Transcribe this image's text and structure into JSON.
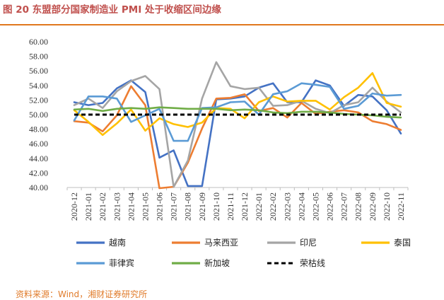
{
  "figure": {
    "title": "图 20 东盟部分国家制造业 PMI 处于收缩区间边缘",
    "source": "资料来源：Wind，湘财证券研究所"
  },
  "chart_data": {
    "type": "line",
    "title": "图 20 东盟部分国家制造业 PMI 处于收缩区间边缘",
    "xlabel": "",
    "ylabel": "",
    "ylim": [
      40,
      60
    ],
    "yticks": [
      40,
      42,
      44,
      46,
      48,
      50,
      52,
      54,
      56,
      58,
      60
    ],
    "ytick_labels": [
      "40.00",
      "42.00",
      "44.00",
      "46.00",
      "48.00",
      "50.00",
      "52.00",
      "54.00",
      "56.00",
      "58.00",
      "60.00"
    ],
    "grid": false,
    "legend_position": "bottom",
    "categories": [
      "2020-12",
      "2021-01",
      "2021-02",
      "2021-03",
      "2021-04",
      "2021-05",
      "2021-06",
      "2021-07",
      "2021-08",
      "2021-09",
      "2021-10",
      "2021-11",
      "2021-12",
      "2022-01",
      "2022-02",
      "2022-03",
      "2022-04",
      "2022-05",
      "2022-06",
      "2022-07",
      "2022-08",
      "2022-09",
      "2022-10",
      "2022-11"
    ],
    "x_tick_labels": [
      "2020-12",
      "2021-01",
      "2021-02",
      "2021-03",
      "2021-04",
      "2021-05",
      "2021-06",
      "2021-07",
      "2021-08",
      "2021-09",
      "2021-10",
      "2021-11",
      "2021-12",
      "2022-01",
      "2022-02",
      "2022-03",
      "2022-04",
      "2022-05",
      "2022-06",
      "2022-07",
      "2022-08",
      "2022-09",
      "2022-10",
      "2022-11"
    ],
    "series": [
      {
        "name": "越南",
        "color": "#4472c4",
        "dash": "solid",
        "values": [
          51.7,
          51.3,
          51.6,
          53.6,
          54.7,
          53.1,
          44.1,
          45.1,
          40.2,
          40.2,
          52.1,
          52.2,
          52.5,
          53.7,
          54.3,
          51.7,
          51.7,
          54.7,
          54.0,
          51.2,
          52.7,
          52.5,
          50.6,
          47.4
        ]
      },
      {
        "name": "马来西亚",
        "color": "#ed7d31",
        "dash": "solid",
        "values": [
          49.1,
          48.9,
          47.7,
          49.9,
          53.9,
          51.3,
          39.9,
          40.1,
          43.4,
          48.1,
          52.2,
          52.3,
          52.8,
          50.5,
          50.9,
          49.6,
          51.6,
          50.1,
          50.4,
          50.6,
          50.3,
          49.1,
          48.7,
          47.9
        ]
      },
      {
        "name": "印尼",
        "color": "#a5a5a5",
        "dash": "solid",
        "values": [
          51.3,
          52.2,
          50.9,
          53.2,
          54.6,
          55.3,
          53.5,
          40.1,
          43.7,
          52.2,
          57.2,
          53.9,
          53.5,
          53.7,
          51.2,
          51.3,
          51.9,
          50.8,
          50.2,
          51.3,
          51.7,
          53.7,
          51.8,
          50.3
        ]
      },
      {
        "name": "泰国",
        "color": "#ffc000",
        "dash": "solid",
        "values": [
          50.6,
          49.0,
          47.2,
          48.8,
          50.7,
          47.8,
          49.5,
          48.7,
          48.3,
          48.9,
          50.9,
          50.8,
          49.5,
          51.7,
          52.5,
          51.8,
          51.9,
          51.9,
          50.7,
          52.4,
          53.7,
          55.7,
          51.6,
          51.1
        ]
      },
      {
        "name": "菲律宾",
        "color": "#5b9bd5",
        "dash": "solid",
        "values": [
          49.2,
          52.5,
          52.5,
          52.2,
          49.0,
          49.9,
          50.8,
          46.4,
          46.4,
          50.9,
          51.0,
          51.7,
          51.8,
          50.0,
          52.8,
          53.2,
          54.3,
          54.1,
          53.8,
          50.8,
          51.2,
          52.9,
          52.6,
          52.7
        ]
      },
      {
        "name": "新加坡",
        "color": "#70ad47",
        "dash": "solid",
        "values": [
          50.7,
          50.8,
          50.5,
          50.8,
          50.9,
          50.8,
          51.0,
          50.9,
          50.8,
          50.8,
          50.8,
          50.6,
          50.7,
          50.6,
          50.3,
          50.2,
          50.4,
          50.4,
          50.3,
          50.1,
          50.0,
          49.9,
          49.7,
          49.6
        ]
      },
      {
        "name": "荣枯线",
        "color": "#000000",
        "dash": "dash",
        "values": [
          50,
          50,
          50,
          50,
          50,
          50,
          50,
          50,
          50,
          50,
          50,
          50,
          50,
          50,
          50,
          50,
          50,
          50,
          50,
          50,
          50,
          50,
          50,
          50
        ]
      }
    ]
  }
}
